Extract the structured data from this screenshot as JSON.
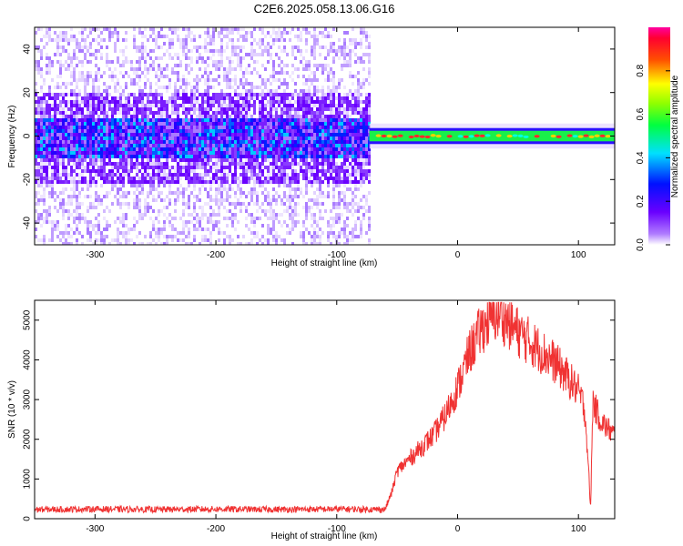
{
  "figure_title": "C2E6.2025.058.13.06.G16",
  "chart_data": [
    {
      "type": "heatmap",
      "title": "C2E6.2025.058.13.06.G16",
      "xlabel": "Height of straight line (km)",
      "ylabel": "Frequency (Hz)",
      "xlim": [
        -350,
        130
      ],
      "ylim": [
        -50,
        50
      ],
      "xticks": [
        -300,
        -200,
        -100,
        0,
        100
      ],
      "xtick_labels": [
        "-300",
        "-200",
        "-100",
        "0",
        "100"
      ],
      "yticks": [
        -40,
        -20,
        0,
        20,
        40
      ],
      "ytick_labels": [
        "-40",
        "-20",
        "0",
        "20",
        "40"
      ],
      "colorbar": {
        "label": "Normalized spectral amplitude",
        "range": [
          0,
          1
        ],
        "ticks": [
          0.0,
          0.2,
          0.4,
          0.6,
          0.8
        ],
        "tick_labels": [
          "0.0",
          "0.2",
          "0.4",
          "0.6",
          "0.8"
        ],
        "colormap": "rainbow (white-violet-blue-cyan-green-yellow-red-magenta)"
      },
      "data_extent_x": [
        -350,
        -73
      ],
      "signal_band_hz": [
        -2,
        2
      ],
      "signal_track_x": [
        -73,
        130
      ]
    },
    {
      "type": "line",
      "xlabel": "Height of straight line (km)",
      "ylabel": "SNR (10 * v/v)",
      "xlim": [
        -350,
        130
      ],
      "ylim": [
        0,
        5500
      ],
      "xticks": [
        -300,
        -200,
        -100,
        0,
        100
      ],
      "xtick_labels": [
        "-300",
        "-200",
        "-100",
        "0",
        "100"
      ],
      "yticks": [
        0,
        1000,
        2000,
        3000,
        4000,
        5000
      ],
      "ytick_labels": [
        "0",
        "1000",
        "2000",
        "3000",
        "4000",
        "5000"
      ],
      "color": "#f03232",
      "series": [
        {
          "x": [
            -350,
            -300,
            -250,
            -200,
            -150,
            -100,
            -60,
            -55,
            -50,
            -40,
            -30,
            -20,
            -10,
            0,
            10,
            20,
            30,
            35,
            40,
            50,
            60,
            70,
            80,
            90,
            100,
            105,
            108,
            110,
            112,
            115,
            120,
            130
          ],
          "values": [
            200,
            210,
            200,
            210,
            200,
            210,
            200,
            600,
            1200,
            1500,
            1800,
            2100,
            2600,
            3300,
            4200,
            4800,
            5100,
            5200,
            5000,
            4700,
            4450,
            4200,
            3950,
            3600,
            3200,
            2800,
            1500,
            200,
            3000,
            2700,
            2400,
            2100
          ]
        }
      ]
    }
  ]
}
